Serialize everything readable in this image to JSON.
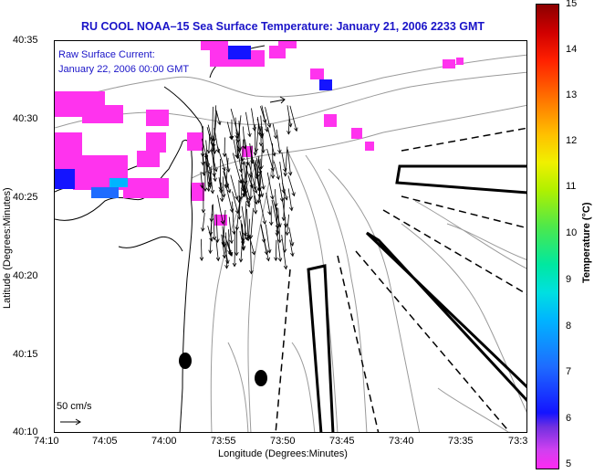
{
  "title": "RU COOL  NOAA–15  Sea Surface Temperature:  January 21, 2006 2233 GMT",
  "legend": {
    "line1": "Raw Surface Current:",
    "line2": "January 22, 2006 00:00 GMT"
  },
  "axes": {
    "xlabel": "Longitude (Degrees:Minutes)",
    "ylabel": "Latitude (Degrees:Minutes)",
    "yticks": [
      "40:35",
      "40:30",
      "40:25",
      "40:20",
      "40:15",
      "40:10"
    ],
    "xticks": [
      "74:10",
      "74:05",
      "74:00",
      "73:55",
      "73:50",
      "73:45",
      "73:40",
      "73:35",
      "73:3"
    ]
  },
  "scale": {
    "label": "50 cm/s"
  },
  "colorbar": {
    "label": "Temperature (°C)",
    "ticks": [
      "15",
      "14",
      "13",
      "12",
      "11",
      "10",
      "9",
      "8",
      "7",
      "6",
      "5"
    ],
    "colors": {
      "min": "#ff2af2",
      "low": "#1414ff",
      "mid": "#00e8a0",
      "high": "#f0f000",
      "max": "#8c0000"
    }
  },
  "colors": {
    "title": "#1a14c8",
    "sst_patch": "#ff33ee",
    "land_outline": "#000000",
    "bathymetry": "#9a9a9a"
  }
}
